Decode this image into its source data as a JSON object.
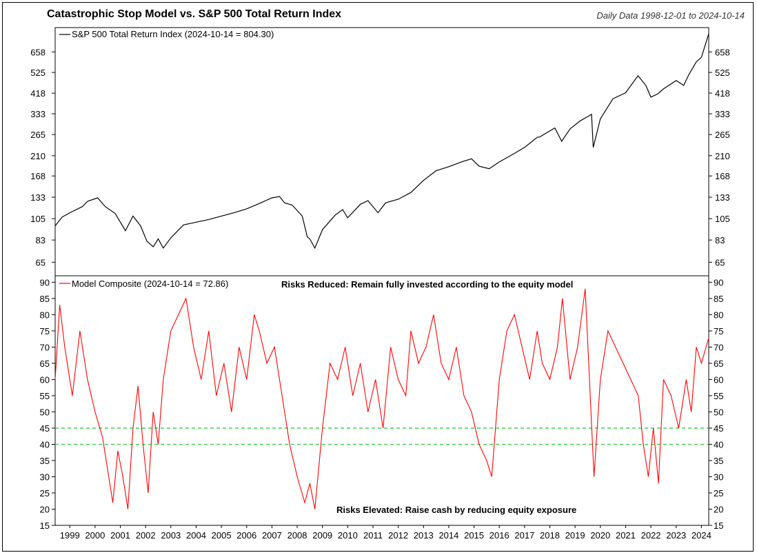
{
  "title": "Catastrophic Stop Model vs. S&P 500 Total Return Index",
  "subtitle": "Daily Data 1998-12-01 to 2024-10-14",
  "chart_data": [
    {
      "type": "line",
      "scale": "log",
      "legend": "S&P 500 Total Return Index (2024-10-14 = 804.30)",
      "legend_position": "top-left",
      "grid": false,
      "color": "#000000",
      "ylim": [
        56,
        860
      ],
      "y_ticks": [
        65,
        83,
        105,
        133,
        168,
        210,
        265,
        333,
        418,
        525,
        658
      ],
      "series": [
        {
          "x": [
            1998.92,
            1999.2,
            1999.5,
            2000.0,
            2000.2,
            2000.6,
            2000.9,
            2001.3,
            2001.7,
            2002.0,
            2002.3,
            2002.55,
            2002.8,
            2003.0,
            2003.2,
            2003.5,
            2004.0,
            2004.5,
            2005.0,
            2005.5,
            2006.0,
            2006.5,
            2007.0,
            2007.5,
            2007.8,
            2008.0,
            2008.3,
            2008.7,
            2008.9,
            2009.0,
            2009.2,
            2009.5,
            2010.0,
            2010.3,
            2010.5,
            2011.0,
            2011.3,
            2011.7,
            2012.0,
            2012.5,
            2013.0,
            2013.5,
            2014.0,
            2014.5,
            2015.0,
            2015.4,
            2015.7,
            2016.1,
            2016.5,
            2017.0,
            2017.5,
            2018.0,
            2018.1,
            2018.7,
            2018.97,
            2019.3,
            2019.7,
            2020.0,
            2020.15,
            2020.22,
            2020.5,
            2020.8,
            2021.0,
            2021.5,
            2021.99,
            2022.3,
            2022.5,
            2022.78,
            2023.0,
            2023.5,
            2023.8,
            2024.0,
            2024.3,
            2024.5,
            2024.79
          ],
          "y": [
            97,
            107,
            112,
            120,
            127,
            132,
            120,
            111,
            92,
            108,
            97,
            82,
            77,
            84,
            76,
            85,
            98,
            101,
            104,
            108,
            112,
            117,
            124,
            132,
            134,
            125,
            122,
            108,
            86,
            84,
            76,
            93,
            109,
            116,
            106,
            123,
            128,
            112,
            125,
            130,
            140,
            160,
            178,
            186,
            196,
            203,
            187,
            182,
            196,
            212,
            230,
            257,
            258,
            285,
            246,
            282,
            308,
            323,
            331,
            230,
            315,
            360,
            393,
            420,
            506,
            455,
            400,
            415,
            438,
            480,
            455,
            512,
            590,
            620,
            804
          ]
        }
      ]
    },
    {
      "type": "line",
      "legend": "Model Composite (2024-10-14 = 72.86)",
      "legend_position": "top-left",
      "grid": false,
      "color": "#ff0000",
      "ylim": [
        15,
        92
      ],
      "y_ticks": [
        15,
        20,
        25,
        30,
        35,
        40,
        45,
        50,
        55,
        60,
        65,
        70,
        75,
        80,
        85,
        90
      ],
      "x_ticks": [
        "1999",
        "2000",
        "2001",
        "2002",
        "2003",
        "2004",
        "2005",
        "2006",
        "2007",
        "2008",
        "2009",
        "2010",
        "2011",
        "2012",
        "2013",
        "2014",
        "2015",
        "2016",
        "2017",
        "2018",
        "2019",
        "2020",
        "2021",
        "2022",
        "2023",
        "2024"
      ],
      "reference_lines": [
        {
          "y": 45,
          "color": "#2ecc40",
          "style": "dashed"
        },
        {
          "y": 40,
          "color": "#2ecc40",
          "style": "dashed"
        }
      ],
      "annotations": [
        "Risks Reduced: Remain fully invested according to the equity model",
        "Risks Elevated: Raise cash by reducing equity exposure"
      ],
      "series": [
        {
          "x": [
            1998.92,
            1999.1,
            1999.3,
            1999.6,
            1999.9,
            2000.2,
            2000.5,
            2000.8,
            2001.0,
            2001.2,
            2001.4,
            2001.6,
            2001.8,
            2002.0,
            2002.2,
            2002.4,
            2002.6,
            2002.8,
            2003.0,
            2003.2,
            2003.5,
            2003.8,
            2004.1,
            2004.4,
            2004.7,
            2005.0,
            2005.3,
            2005.6,
            2005.9,
            2006.2,
            2006.5,
            2006.8,
            2007.0,
            2007.3,
            2007.6,
            2007.9,
            2008.2,
            2008.5,
            2008.8,
            2009.0,
            2009.2,
            2009.5,
            2009.8,
            2010.1,
            2010.4,
            2010.7,
            2011.0,
            2011.3,
            2011.6,
            2011.9,
            2012.2,
            2012.5,
            2012.8,
            2013.0,
            2013.3,
            2013.6,
            2013.9,
            2014.2,
            2014.5,
            2014.8,
            2015.1,
            2015.4,
            2015.7,
            2016.0,
            2016.2,
            2016.5,
            2016.8,
            2017.1,
            2017.4,
            2017.7,
            2018.0,
            2018.2,
            2018.5,
            2018.8,
            2019.0,
            2019.3,
            2019.6,
            2019.9,
            2020.1,
            2020.25,
            2020.5,
            2020.8,
            2021.1,
            2021.4,
            2021.7,
            2022.0,
            2022.2,
            2022.4,
            2022.6,
            2022.8,
            2023.0,
            2023.3,
            2023.6,
            2023.9,
            2024.1,
            2024.3,
            2024.5,
            2024.79
          ],
          "y": [
            60,
            83,
            70,
            55,
            75,
            60,
            50,
            42,
            32,
            22,
            38,
            30,
            20,
            45,
            58,
            40,
            25,
            50,
            40,
            60,
            75,
            80,
            85,
            70,
            60,
            75,
            55,
            65,
            50,
            70,
            60,
            80,
            75,
            65,
            70,
            55,
            40,
            30,
            22,
            28,
            20,
            45,
            65,
            60,
            70,
            55,
            65,
            50,
            60,
            45,
            70,
            60,
            55,
            75,
            65,
            70,
            80,
            65,
            60,
            70,
            55,
            50,
            40,
            35,
            30,
            60,
            75,
            80,
            70,
            60,
            75,
            65,
            60,
            70,
            85,
            60,
            70,
            88,
            55,
            30,
            60,
            75,
            70,
            65,
            60,
            55,
            40,
            30,
            45,
            28,
            60,
            55,
            45,
            60,
            50,
            70,
            65,
            72.86
          ]
        }
      ]
    }
  ]
}
